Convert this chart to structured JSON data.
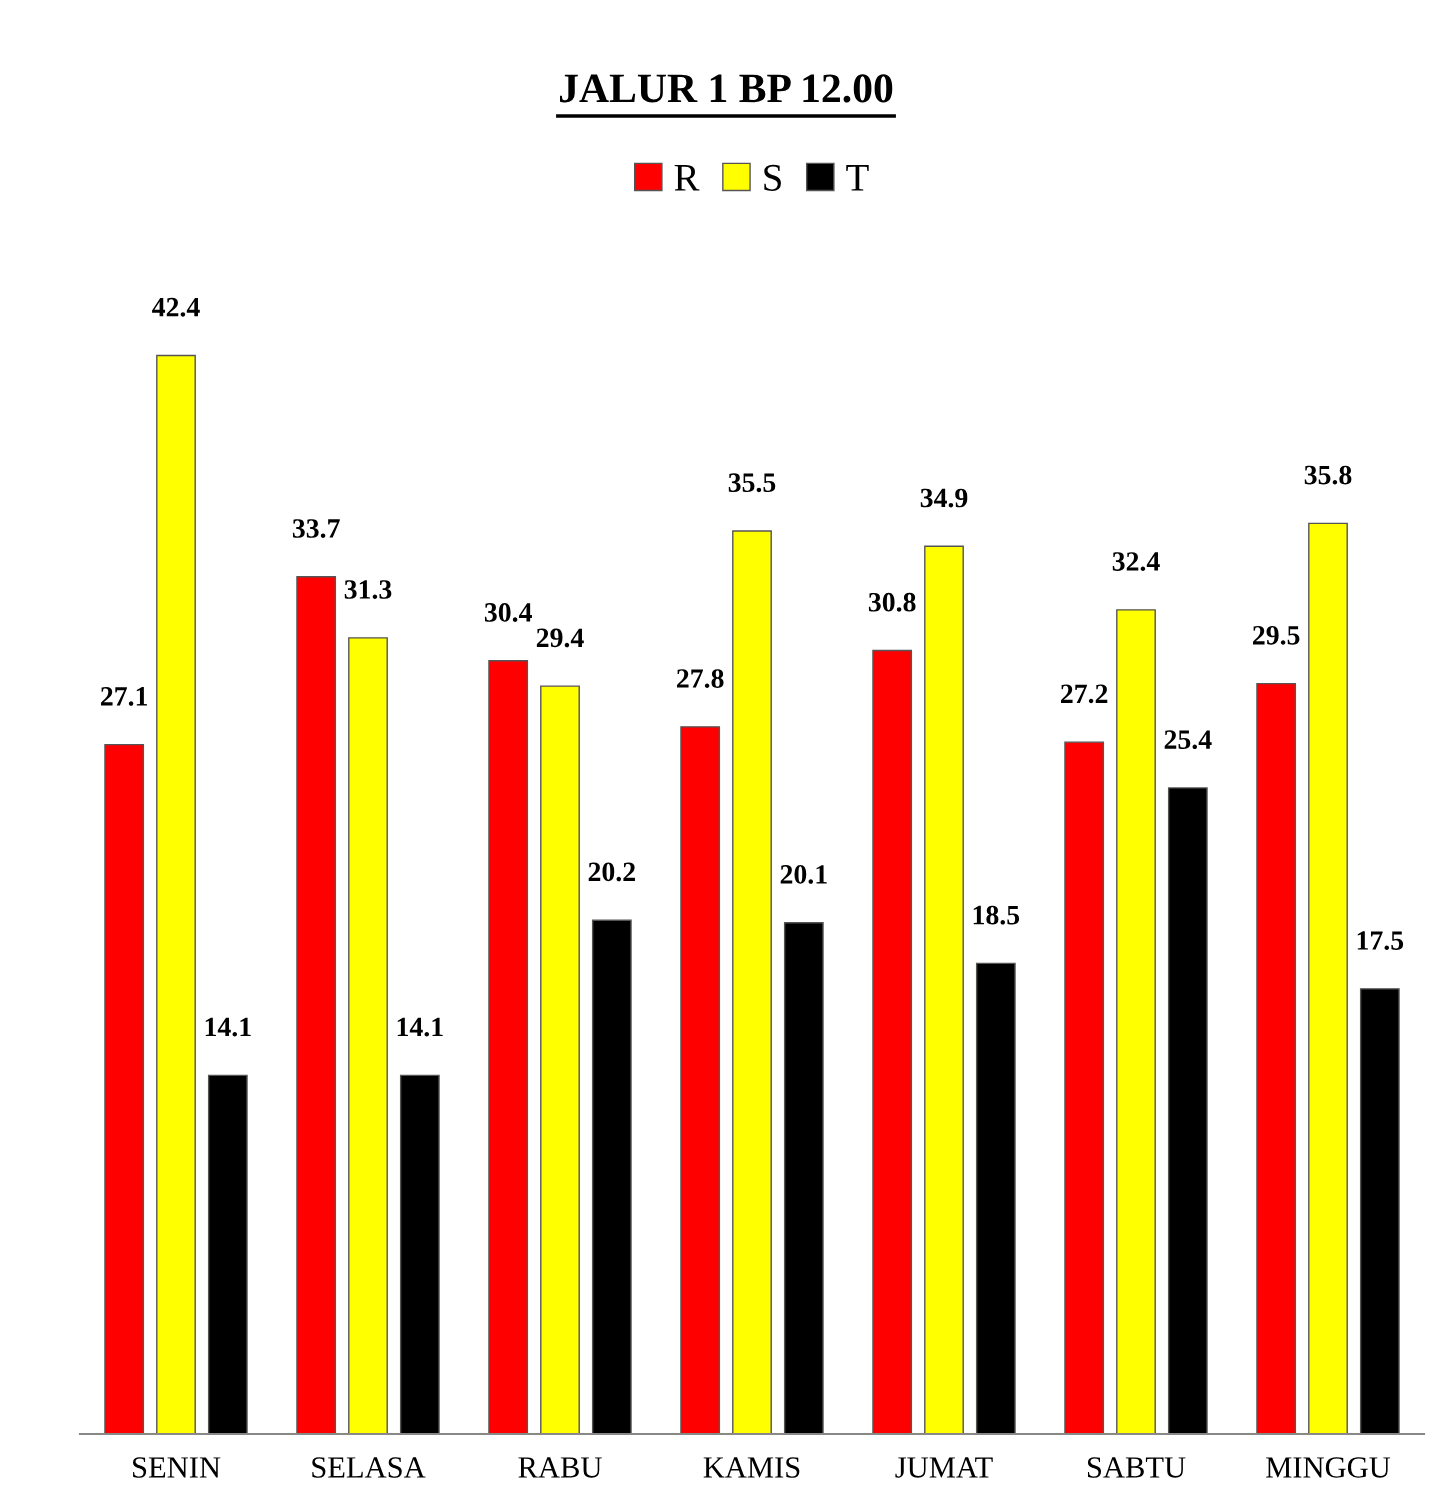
{
  "chart_data": {
    "type": "bar",
    "title": "JALUR 1 BP 12.00",
    "categories": [
      "SENIN",
      "SELASA",
      "RABU",
      "KAMIS",
      "JUMAT",
      "SABTU",
      "MINGGU"
    ],
    "series": [
      {
        "name": "R",
        "color": "#ff0000",
        "values": [
          27.1,
          33.7,
          30.4,
          27.8,
          30.8,
          27.2,
          29.5
        ]
      },
      {
        "name": "S",
        "color": "#ffff00",
        "values": [
          42.4,
          31.3,
          29.4,
          35.5,
          34.9,
          32.4,
          35.8
        ]
      },
      {
        "name": "T",
        "color": "#000000",
        "values": [
          14.1,
          14.1,
          20.2,
          20.1,
          18.5,
          25.4,
          17.5
        ]
      }
    ],
    "tick_labels": "x",
    "data_labels": true,
    "legend": "top",
    "grid": false
  }
}
